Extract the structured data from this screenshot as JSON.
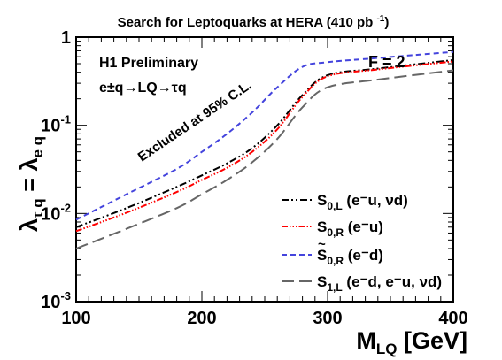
{
  "chart_data": {
    "type": "line",
    "title": "Search for Leptoquarks at HERA (410 pb⁻¹)",
    "xlabel": "M_LQ [GeV]",
    "ylabel": "λ_τq = λ_eq",
    "xlim": [
      100,
      400
    ],
    "ylim": [
      0.001,
      1
    ],
    "yscale": "log",
    "x_ticks": [
      100,
      200,
      300,
      400
    ],
    "y_ticks": [
      {
        "value": 0.001,
        "mant": "10",
        "exp": "-3"
      },
      {
        "value": 0.01,
        "mant": "10",
        "exp": "-2"
      },
      {
        "value": 0.1,
        "mant": "10",
        "exp": "-1"
      },
      {
        "value": 1,
        "mant": "1",
        "exp": ""
      }
    ],
    "x_tick_labels": [
      "100",
      "200",
      "300",
      "400"
    ],
    "annotations": {
      "preliminary": "H1 Preliminary",
      "process": "e±q→LQ→τq",
      "excluded": "Excluded at 95% C.L.",
      "f_value": "F = 2"
    },
    "series": [
      {
        "name": "S0,L (e⁻u, νd)",
        "label_main": "S",
        "label_sub": "0,L",
        "label_rest": " (e⁻u, νd)",
        "tilde": false,
        "color": "#000000",
        "dash": "8,3,2,3,2,3",
        "x": [
          100,
          140,
          180,
          200,
          220,
          240,
          260,
          280,
          300,
          340,
          400
        ],
        "y": [
          0.007,
          0.0115,
          0.02,
          0.027,
          0.037,
          0.055,
          0.1,
          0.22,
          0.37,
          0.44,
          0.55
        ]
      },
      {
        "name": "S0,R (e⁻u)",
        "label_main": "S",
        "label_sub": "0,R",
        "label_rest": " (e⁻u)",
        "tilde": false,
        "color": "#ff0000",
        "dash": "7,2,1.5,2,1.5,2,1.5,2",
        "x": [
          100,
          140,
          180,
          200,
          220,
          240,
          260,
          280,
          300,
          340,
          400
        ],
        "y": [
          0.0063,
          0.0102,
          0.0175,
          0.024,
          0.033,
          0.05,
          0.09,
          0.21,
          0.36,
          0.43,
          0.53
        ]
      },
      {
        "name": "S̃0,R (e⁻d)",
        "label_main": "S",
        "label_sub": "0,R",
        "label_rest": " (e⁻d)",
        "tilde": true,
        "color": "#4444dd",
        "dash": "6,4",
        "x": [
          100,
          140,
          180,
          200,
          220,
          240,
          260,
          280,
          300,
          340,
          400
        ],
        "y": [
          0.0085,
          0.0165,
          0.032,
          0.05,
          0.08,
          0.14,
          0.27,
          0.46,
          0.52,
          0.58,
          0.68
        ]
      },
      {
        "name": "S1,L (e⁻d, e⁻u, νd)",
        "label_main": "S",
        "label_sub": "1,L",
        "label_rest": " (e⁻d, e⁻u, νd)",
        "tilde": false,
        "color": "#666666",
        "dash": "14,6",
        "x": [
          100,
          140,
          180,
          200,
          220,
          240,
          260,
          280,
          300,
          340,
          400
        ],
        "y": [
          0.004,
          0.0067,
          0.0115,
          0.0165,
          0.024,
          0.038,
          0.07,
          0.16,
          0.27,
          0.33,
          0.42
        ]
      }
    ]
  }
}
